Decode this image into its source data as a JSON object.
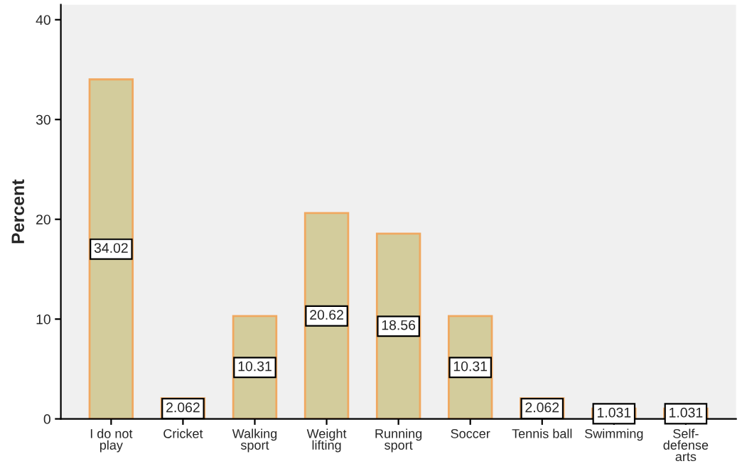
{
  "chart_data": {
    "type": "bar",
    "ylabel": "Percent",
    "categories": [
      "I do not\nplay",
      "Cricket",
      "Walking\nsport",
      "Weight\nlifting",
      "Running\nsport",
      "Soccer",
      "Tennis ball",
      "Swimming",
      "Self-\ndefense\narts"
    ],
    "values": [
      34.02,
      2.062,
      10.31,
      20.62,
      18.56,
      10.31,
      2.062,
      1.031,
      1.031
    ],
    "color": "#d3cc9c",
    "data_labels": true,
    "ylim": [
      0,
      41.5
    ],
    "yticks": [
      0,
      10,
      20,
      30,
      40
    ],
    "grid": false,
    "legend": false
  }
}
